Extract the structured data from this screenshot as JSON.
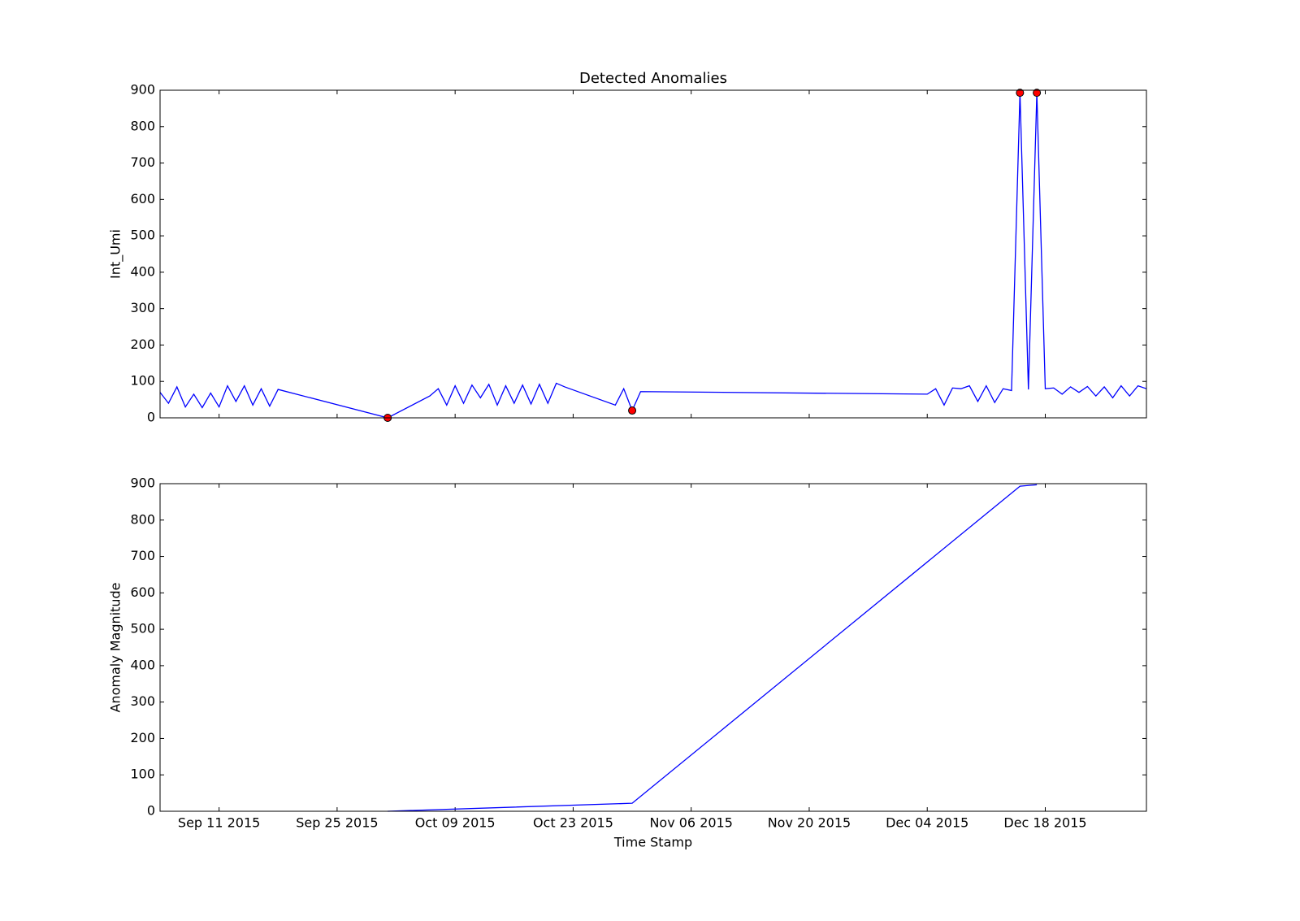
{
  "chart_data": [
    {
      "type": "line",
      "title": "Detected Anomalies",
      "ylabel": "Int_Umi",
      "x": [
        "2015-09-04",
        "2015-09-05",
        "2015-09-06",
        "2015-09-07",
        "2015-09-08",
        "2015-09-09",
        "2015-09-10",
        "2015-09-11",
        "2015-09-12",
        "2015-09-13",
        "2015-09-14",
        "2015-09-15",
        "2015-09-16",
        "2015-09-17",
        "2015-09-18",
        "2015-10-01",
        "2015-10-06",
        "2015-10-07",
        "2015-10-08",
        "2015-10-09",
        "2015-10-10",
        "2015-10-11",
        "2015-10-12",
        "2015-10-13",
        "2015-10-14",
        "2015-10-15",
        "2015-10-16",
        "2015-10-17",
        "2015-10-18",
        "2015-10-19",
        "2015-10-20",
        "2015-10-21",
        "2015-10-22",
        "2015-10-28",
        "2015-10-29",
        "2015-10-30",
        "2015-10-31",
        "2015-12-04",
        "2015-12-05",
        "2015-12-06",
        "2015-12-07",
        "2015-12-08",
        "2015-12-09",
        "2015-12-10",
        "2015-12-11",
        "2015-12-12",
        "2015-12-13",
        "2015-12-14",
        "2015-12-15",
        "2015-12-16",
        "2015-12-17",
        "2015-12-18",
        "2015-12-19",
        "2015-12-20",
        "2015-12-21",
        "2015-12-22",
        "2015-12-23",
        "2015-12-24",
        "2015-12-25",
        "2015-12-26",
        "2015-12-27",
        "2015-12-28",
        "2015-12-29",
        "2015-12-30"
      ],
      "series": [
        {
          "color": "#0000ff",
          "style": "line",
          "values": [
            70,
            40,
            85,
            30,
            65,
            28,
            68,
            30,
            88,
            45,
            88,
            35,
            80,
            32,
            78,
            0,
            60,
            80,
            35,
            88,
            40,
            90,
            55,
            92,
            35,
            88,
            40,
            90,
            38,
            92,
            40,
            95,
            85,
            35,
            80,
            20,
            72,
            65,
            80,
            35,
            82,
            80,
            88,
            45,
            88,
            42,
            80,
            75,
            893,
            78,
            893,
            80,
            82,
            65,
            85,
            70,
            86,
            60,
            85,
            55,
            88,
            60,
            88,
            80
          ]
        },
        {
          "color": "#ff0000",
          "style": "markers",
          "values": [
            null,
            null,
            null,
            null,
            null,
            null,
            null,
            null,
            null,
            null,
            null,
            null,
            null,
            null,
            null,
            0,
            null,
            null,
            null,
            null,
            null,
            null,
            null,
            null,
            null,
            null,
            null,
            null,
            null,
            null,
            null,
            null,
            null,
            null,
            null,
            20,
            null,
            null,
            null,
            null,
            null,
            null,
            null,
            null,
            null,
            null,
            null,
            null,
            893,
            null,
            893,
            null,
            null,
            null,
            null,
            null,
            null,
            null,
            null,
            null,
            null,
            null,
            null,
            null
          ]
        }
      ],
      "xlim": [
        "2015-09-04",
        "2015-12-30"
      ],
      "ylim": [
        0,
        900
      ],
      "yticks": [
        0,
        100,
        200,
        300,
        400,
        500,
        600,
        700,
        800,
        900
      ]
    },
    {
      "type": "line",
      "xlabel": "Time Stamp",
      "ylabel": "Anomaly Magnitude",
      "x": [
        "2015-10-01",
        "2015-10-30",
        "2015-12-15",
        "2015-12-17"
      ],
      "series": [
        {
          "color": "#0000ff",
          "style": "line",
          "values": [
            0,
            22,
            893,
            897
          ]
        }
      ],
      "xlim": [
        "2015-09-04",
        "2015-12-30"
      ],
      "xticks": [
        {
          "value": "2015-09-11",
          "label": "Sep 11 2015"
        },
        {
          "value": "2015-09-25",
          "label": "Sep 25 2015"
        },
        {
          "value": "2015-10-09",
          "label": "Oct 09 2015"
        },
        {
          "value": "2015-10-23",
          "label": "Oct 23 2015"
        },
        {
          "value": "2015-11-06",
          "label": "Nov 06 2015"
        },
        {
          "value": "2015-11-20",
          "label": "Nov 20 2015"
        },
        {
          "value": "2015-12-04",
          "label": "Dec 04 2015"
        },
        {
          "value": "2015-12-18",
          "label": "Dec 18 2015"
        }
      ],
      "ylim": [
        0,
        900
      ],
      "yticks": [
        0,
        100,
        200,
        300,
        400,
        500,
        600,
        700,
        800,
        900
      ]
    }
  ]
}
